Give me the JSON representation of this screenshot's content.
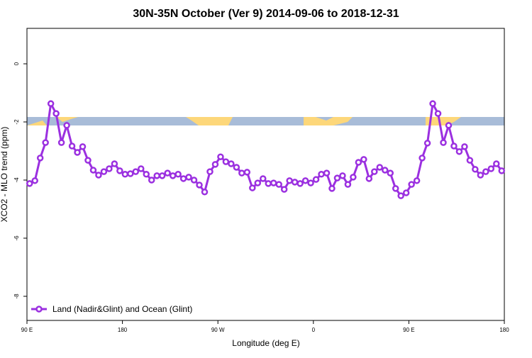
{
  "chart_data": {
    "type": "line",
    "title": "30N-35N October (Ver 9)   2014-09-06 to 2018-12-31",
    "x_label": "Longitude (deg E)",
    "y_label": "XCO2 - MLO trend (ppm)",
    "xlim": [
      90,
      540
    ],
    "xticks": [
      {
        "value": 90,
        "label": "90 E"
      },
      {
        "value": 180,
        "label": "180"
      },
      {
        "value": 270,
        "label": "90 W"
      },
      {
        "value": 360,
        "label": "0"
      },
      {
        "value": 450,
        "label": "90 E"
      },
      {
        "value": 540,
        "label": "180"
      }
    ],
    "ylim": [
      -8.83,
      1.22
    ],
    "yticks": [
      0,
      -2,
      -4,
      -6,
      -8
    ],
    "legend": "bottom-left",
    "x": [
      92.5,
      97.5,
      102.5,
      107.5,
      112.5,
      117.5,
      122.5,
      127.5,
      132.5,
      137.5,
      142.5,
      147.5,
      152.5,
      157.5,
      162.5,
      167.5,
      172.5,
      177.5,
      182.5,
      187.5,
      192.5,
      197.5,
      202.5,
      207.5,
      212.5,
      217.5,
      222.5,
      227.5,
      232.5,
      237.5,
      242.5,
      247.5,
      252.5,
      257.5,
      262.5,
      267.5,
      272.5,
      277.5,
      282.5,
      287.5,
      292.5,
      297.5,
      302.5,
      307.5,
      312.5,
      317.5,
      322.5,
      327.5,
      332.5,
      337.5,
      342.5,
      347.5,
      352.5,
      357.5,
      362.5,
      367.5,
      372.5,
      377.5,
      382.5,
      387.5,
      392.5,
      397.5,
      402.5,
      407.5,
      412.5,
      417.5,
      422.5,
      427.5,
      432.5,
      437.5,
      442.5,
      447.5,
      452.5,
      457.5,
      462.5,
      467.5,
      472.5,
      477.5,
      482.5,
      487.5,
      492.5,
      497.5,
      502.5,
      507.5,
      512.5,
      517.5,
      522.5,
      527.5,
      532.5,
      537.5
    ],
    "series": [
      {
        "name": "Land (Nadir&Glint) and Ocean (Glint)",
        "color": "#9b30e0",
        "values": [
          -4.12,
          -4.02,
          -3.24,
          -2.71,
          -1.37,
          -1.71,
          -2.71,
          -2.12,
          -2.83,
          -3.05,
          -2.85,
          -3.32,
          -3.66,
          -3.83,
          -3.71,
          -3.61,
          -3.44,
          -3.68,
          -3.8,
          -3.78,
          -3.71,
          -3.61,
          -3.8,
          -4.0,
          -3.85,
          -3.85,
          -3.76,
          -3.85,
          -3.8,
          -3.95,
          -3.9,
          -4.0,
          -4.17,
          -4.41,
          -3.71,
          -3.46,
          -3.2,
          -3.37,
          -3.44,
          -3.56,
          -3.76,
          -3.73,
          -4.27,
          -4.1,
          -3.95,
          -4.12,
          -4.1,
          -4.15,
          -4.32,
          -4.02,
          -4.07,
          -4.12,
          -4.02,
          -4.1,
          -3.98,
          -3.8,
          -3.76,
          -4.29,
          -3.93,
          -3.85,
          -4.15,
          -3.9,
          -3.39,
          -3.29,
          -3.95,
          -3.71,
          -3.56,
          -3.66,
          -3.76,
          -4.29,
          -4.54,
          -4.44,
          -4.15,
          -4.02,
          -3.24,
          -2.73,
          -1.37,
          -1.71,
          -2.71,
          -2.12,
          -2.83,
          -3.02,
          -2.85,
          -3.32,
          -3.63,
          -3.83,
          -3.71,
          -3.61,
          -3.44,
          -3.68
        ]
      }
    ]
  }
}
